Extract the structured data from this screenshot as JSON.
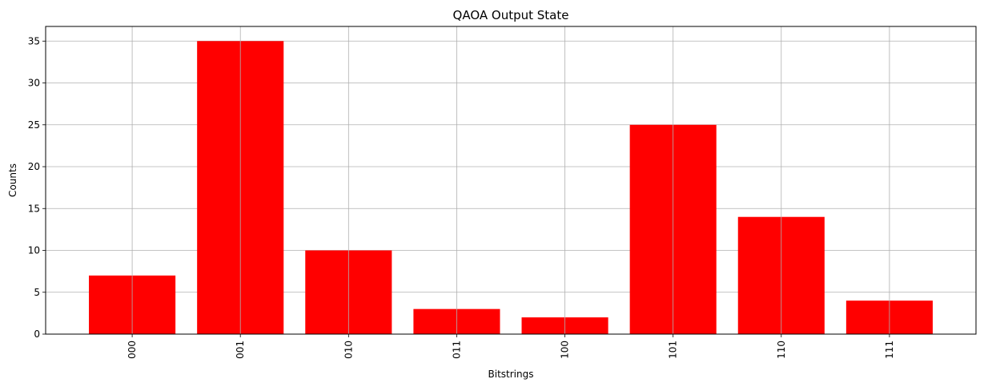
{
  "chart_data": {
    "type": "bar",
    "title": "QAOA Output State",
    "xlabel": "Bitstrings",
    "ylabel": "Counts",
    "categories": [
      "000",
      "001",
      "010",
      "011",
      "100",
      "101",
      "110",
      "111"
    ],
    "values": [
      7,
      35,
      10,
      3,
      2,
      25,
      14,
      4
    ],
    "ylim": [
      0,
      36.75
    ],
    "yticks": [
      0,
      5,
      10,
      15,
      20,
      25,
      30,
      35
    ],
    "grid": true,
    "legend": "none",
    "bar_color": "#ff0000",
    "grid_color": "#b0b0b0"
  }
}
